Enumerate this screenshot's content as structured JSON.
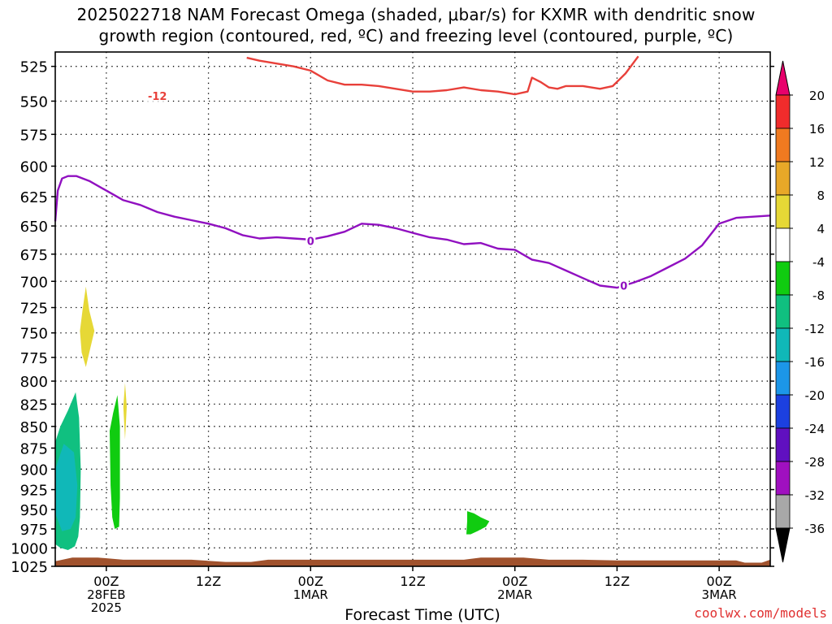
{
  "title": {
    "line1": "2025022718 NAM Forecast Omega (shaded, μbar/s) for KXMR with dendritic snow",
    "line2": "growth region (contoured, red, ºC) and freezing level (contoured, purple, ºC)"
  },
  "credit": "coolwx.com/models",
  "colors": {
    "dgz_contour": "#e8403a",
    "freezing_contour": "#9010c0",
    "ground": "#a0522d",
    "grid": "#000000"
  },
  "chart_data": {
    "type": "contour",
    "xlabel": "Forecast Time (UTC)",
    "ylabel": "",
    "x_unit": "hours from 18Z 27FEB2025",
    "xlim": [
      0,
      84
    ],
    "ylim": [
      1025,
      515
    ],
    "y_ticks": [
      525,
      550,
      575,
      600,
      625,
      650,
      675,
      700,
      725,
      750,
      775,
      800,
      825,
      850,
      875,
      900,
      925,
      950,
      975,
      1000,
      1025
    ],
    "y_tick_labels": [
      "525",
      "550",
      "575",
      "600",
      "625",
      "650",
      "675",
      "700",
      "725",
      "750",
      "775",
      "800",
      "825",
      "850",
      "875",
      "900",
      "925",
      "950",
      "975",
      "1000",
      "1025"
    ],
    "x_ticks": [
      {
        "t": 6,
        "label": "00Z",
        "sub": [
          "28FEB",
          "2025"
        ]
      },
      {
        "t": 18,
        "label": "12Z",
        "sub": []
      },
      {
        "t": 30,
        "label": "00Z",
        "sub": [
          "1MAR"
        ]
      },
      {
        "t": 42,
        "label": "12Z",
        "sub": []
      },
      {
        "t": 54,
        "label": "00Z",
        "sub": [
          "2MAR"
        ]
      },
      {
        "t": 66,
        "label": "12Z",
        "sub": []
      },
      {
        "t": 78,
        "label": "00Z",
        "sub": [
          "3MAR"
        ]
      }
    ],
    "colorbar": {
      "levels": [
        "20",
        "16",
        "12",
        "8",
        "4",
        "-4",
        "-8",
        "-12",
        "-16",
        "-20",
        "-24",
        "-28",
        "-32",
        "-36"
      ],
      "colors": [
        "#e8006c",
        "#f02c2c",
        "#f07a20",
        "#e8a828",
        "#e6d836",
        "#ffffff",
        "#10cc10",
        "#10c080",
        "#10b8b8",
        "#1c96e8",
        "#1c40e0",
        "#6010c0",
        "#a010c0",
        "#a8a8a8",
        "#000000"
      ]
    },
    "dgz_contour": {
      "label": "-12",
      "label_at": [
        12.0,
        546
      ],
      "points": [
        [
          22.5,
          519
        ],
        [
          24,
          521
        ],
        [
          26,
          523
        ],
        [
          28,
          525
        ],
        [
          30,
          528
        ],
        [
          32,
          535
        ],
        [
          34,
          538
        ],
        [
          36,
          538
        ],
        [
          38,
          539
        ],
        [
          40,
          541
        ],
        [
          42,
          543
        ],
        [
          44,
          543
        ],
        [
          46,
          542
        ],
        [
          48,
          540
        ],
        [
          50,
          542
        ],
        [
          52,
          543
        ],
        [
          54,
          545
        ],
        [
          55.5,
          543
        ],
        [
          56,
          533
        ],
        [
          57,
          536
        ],
        [
          58,
          540
        ],
        [
          59,
          541
        ],
        [
          60,
          539
        ],
        [
          62,
          539
        ],
        [
          64,
          541
        ],
        [
          65.5,
          539
        ],
        [
          67,
          530
        ],
        [
          68.5,
          518
        ]
      ]
    },
    "freezing_contour": {
      "label": "0",
      "label_at": [
        [
          30.0,
          663
        ],
        [
          66.8,
          704
        ]
      ],
      "points": [
        [
          0,
          646
        ],
        [
          0.3,
          620
        ],
        [
          0.8,
          610
        ],
        [
          1.5,
          608
        ],
        [
          2.5,
          608
        ],
        [
          4,
          612
        ],
        [
          6,
          620
        ],
        [
          8,
          628
        ],
        [
          10,
          632
        ],
        [
          12,
          638
        ],
        [
          14,
          642
        ],
        [
          16,
          645
        ],
        [
          18,
          648
        ],
        [
          20,
          652
        ],
        [
          22,
          658
        ],
        [
          24,
          661
        ],
        [
          26,
          660
        ],
        [
          28,
          661
        ],
        [
          30,
          662
        ],
        [
          32,
          659
        ],
        [
          34,
          655
        ],
        [
          36,
          648
        ],
        [
          38,
          649
        ],
        [
          40,
          652
        ],
        [
          42,
          656
        ],
        [
          44,
          660
        ],
        [
          46,
          662
        ],
        [
          48,
          666
        ],
        [
          50,
          665
        ],
        [
          52,
          670
        ],
        [
          54,
          671
        ],
        [
          56,
          680
        ],
        [
          58,
          683
        ],
        [
          60,
          690
        ],
        [
          62,
          697
        ],
        [
          64,
          704
        ],
        [
          66,
          706
        ],
        [
          68,
          701
        ],
        [
          70,
          695
        ],
        [
          72,
          687
        ],
        [
          74,
          679
        ],
        [
          76,
          667
        ],
        [
          78,
          648
        ],
        [
          80,
          643
        ],
        [
          82,
          642
        ],
        [
          84,
          641
        ]
      ]
    },
    "omega_shading": [
      {
        "value_range": [
          4,
          8
        ],
        "shape": [
          [
            3.6,
            705
          ],
          [
            4.0,
            728
          ],
          [
            4.6,
            748
          ],
          [
            4.0,
            770
          ],
          [
            3.6,
            785
          ],
          [
            3.1,
            770
          ],
          [
            2.9,
            748
          ],
          [
            3.2,
            728
          ]
        ]
      },
      {
        "value_range": [
          4,
          8
        ],
        "shape": [
          [
            8.2,
            802
          ],
          [
            8.4,
            828
          ],
          [
            8.2,
            865
          ],
          [
            8.0,
            828
          ]
        ]
      },
      {
        "value_range": [
          -12,
          -8
        ],
        "shape": [
          [
            0.0,
            868
          ],
          [
            0.6,
            850
          ],
          [
            1.5,
            832
          ],
          [
            2.4,
            812
          ],
          [
            2.8,
            840
          ],
          [
            3.0,
            900
          ],
          [
            2.9,
            960
          ],
          [
            2.7,
            985
          ],
          [
            2.3,
            998
          ],
          [
            1.5,
            1003
          ],
          [
            0.6,
            1000
          ],
          [
            0.0,
            995
          ]
        ]
      },
      {
        "value_range": [
          -16,
          -12
        ],
        "shape": [
          [
            0.0,
            900
          ],
          [
            1.0,
            870
          ],
          [
            2.2,
            880
          ],
          [
            2.6,
            920
          ],
          [
            2.4,
            960
          ],
          [
            1.8,
            975
          ],
          [
            0.8,
            978
          ],
          [
            0.0,
            955
          ]
        ]
      },
      {
        "value_range": [
          -8,
          -4
        ],
        "shape": [
          [
            7.3,
            815
          ],
          [
            7.6,
            850
          ],
          [
            7.6,
            935
          ],
          [
            7.5,
            972
          ],
          [
            7.0,
            975
          ],
          [
            6.7,
            960
          ],
          [
            6.5,
            920
          ],
          [
            6.4,
            855
          ],
          [
            6.8,
            835
          ]
        ]
      },
      {
        "value_range": [
          -8,
          -4
        ],
        "shape": [
          [
            48.4,
            952
          ],
          [
            49.2,
            955
          ],
          [
            50.0,
            960
          ],
          [
            51.0,
            965
          ],
          [
            50.6,
            972
          ],
          [
            49.6,
            978
          ],
          [
            48.8,
            982
          ],
          [
            48.3,
            982
          ],
          [
            48.4,
            965
          ]
        ]
      }
    ],
    "ground_top": [
      [
        0,
        1018
      ],
      [
        2,
        1013
      ],
      [
        5,
        1013
      ],
      [
        8,
        1016
      ],
      [
        16,
        1016
      ],
      [
        20,
        1019
      ],
      [
        23,
        1019
      ],
      [
        25,
        1016
      ],
      [
        48,
        1016
      ],
      [
        50,
        1013
      ],
      [
        55,
        1013
      ],
      [
        58,
        1016
      ],
      [
        62,
        1016
      ],
      [
        66,
        1017
      ],
      [
        80,
        1017
      ],
      [
        81,
        1020
      ],
      [
        83,
        1020
      ],
      [
        84,
        1016
      ]
    ]
  }
}
